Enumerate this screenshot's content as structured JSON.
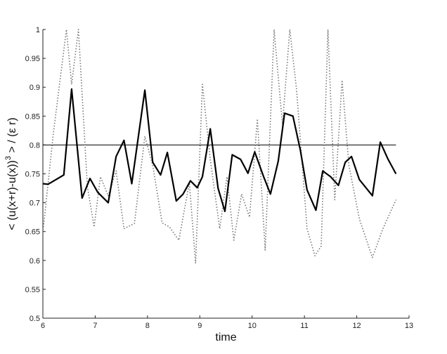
{
  "chart_data": {
    "type": "line",
    "title": "",
    "xlabel": "time",
    "ylabel": "< (u(x+r)-u(x))^3 > / (ε r)",
    "ylabel_parts": {
      "open": "< (u(x+r)-u(x))",
      "exponent": "3",
      "close": " > / (ε r)"
    },
    "xlim": [
      6,
      13
    ],
    "ylim": [
      0.5,
      1.0
    ],
    "xticks": [
      "6",
      "7",
      "8",
      "9",
      "10",
      "11",
      "12",
      "13"
    ],
    "yticks": [
      "0.5",
      "0.55",
      "0.6",
      "0.65",
      "0.7",
      "0.75",
      "0.8",
      "0.85",
      "0.9",
      "0.95",
      "1"
    ],
    "grid": false,
    "legend": "none",
    "series": [
      {
        "style": "solid-thick",
        "color": "#000000",
        "x": [
          6.0,
          6.1,
          6.4,
          6.55,
          6.75,
          6.9,
          7.05,
          7.25,
          7.4,
          7.55,
          7.7,
          7.95,
          8.1,
          8.25,
          8.38,
          8.55,
          8.68,
          8.82,
          8.95,
          9.05,
          9.2,
          9.35,
          9.48,
          9.62,
          9.78,
          9.92,
          10.05,
          10.22,
          10.35,
          10.5,
          10.62,
          10.78,
          10.92,
          11.05,
          11.22,
          11.35,
          11.5,
          11.65,
          11.78,
          11.9,
          12.05,
          12.3,
          12.45,
          12.6,
          12.75
        ],
        "y": [
          0.733,
          0.732,
          0.748,
          0.897,
          0.708,
          0.742,
          0.718,
          0.7,
          0.78,
          0.808,
          0.733,
          0.895,
          0.77,
          0.748,
          0.787,
          0.703,
          0.715,
          0.738,
          0.726,
          0.745,
          0.828,
          0.725,
          0.685,
          0.783,
          0.775,
          0.751,
          0.788,
          0.745,
          0.715,
          0.772,
          0.855,
          0.85,
          0.792,
          0.722,
          0.687,
          0.755,
          0.745,
          0.73,
          0.77,
          0.78,
          0.74,
          0.712,
          0.805,
          0.775,
          0.75
        ]
      },
      {
        "style": "dotted",
        "color": "#777777",
        "x": [
          6.0,
          6.2,
          6.45,
          6.55,
          6.68,
          6.85,
          6.98,
          7.1,
          7.25,
          7.4,
          7.55,
          7.75,
          7.95,
          8.1,
          8.28,
          8.42,
          8.6,
          8.8,
          8.92,
          9.05,
          9.2,
          9.38,
          9.52,
          9.65,
          9.8,
          9.95,
          10.1,
          10.25,
          10.42,
          10.58,
          10.72,
          10.85,
          11.05,
          11.2,
          11.32,
          11.45,
          11.58,
          11.72,
          11.85,
          12.05,
          12.3,
          12.5,
          12.75
        ],
        "y": [
          0.648,
          0.82,
          1.0,
          0.905,
          1.0,
          0.728,
          0.658,
          0.745,
          0.712,
          0.755,
          0.655,
          0.664,
          0.815,
          0.765,
          0.665,
          0.658,
          0.635,
          0.735,
          0.595,
          0.905,
          0.775,
          0.655,
          0.745,
          0.635,
          0.715,
          0.675,
          0.845,
          0.618,
          1.0,
          0.835,
          1.0,
          0.895,
          0.655,
          0.608,
          0.625,
          1.0,
          0.705,
          0.912,
          0.765,
          0.672,
          0.605,
          0.655,
          0.705
        ]
      },
      {
        "style": "reference-line",
        "color": "#000000",
        "x": [
          6.0,
          12.75
        ],
        "y": [
          0.8,
          0.8
        ]
      }
    ]
  }
}
